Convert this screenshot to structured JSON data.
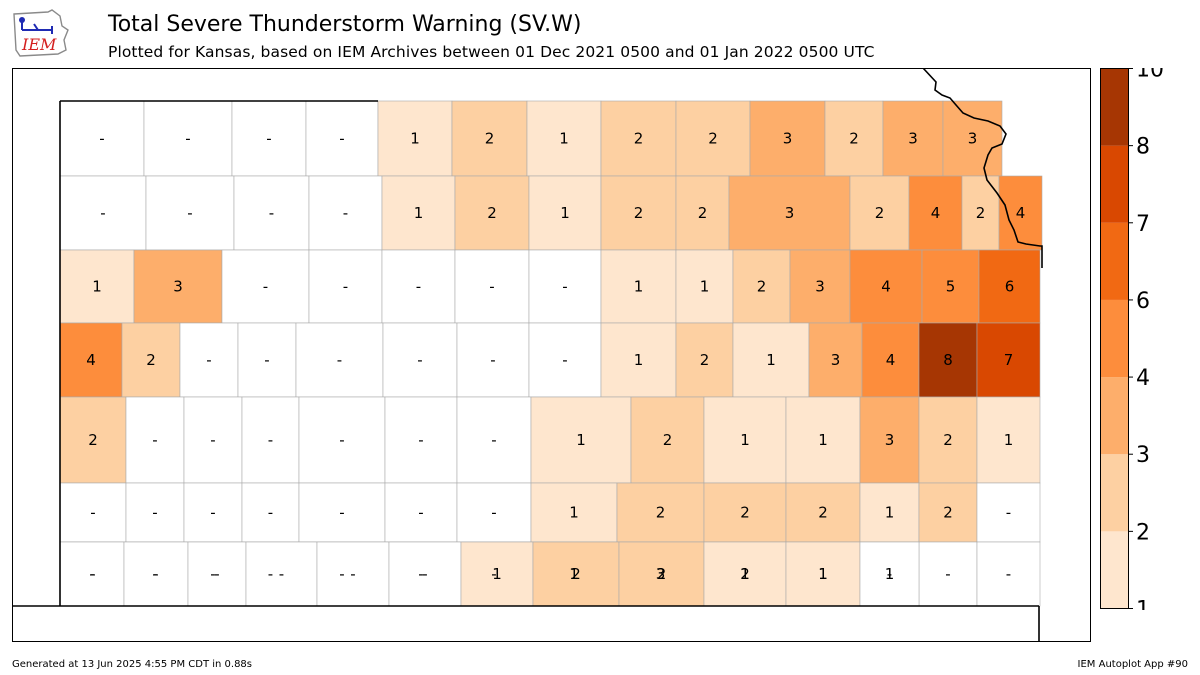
{
  "header": {
    "logo_text": "IEM",
    "title": "Total Severe Thunderstorm Warning (SV.W)",
    "subtitle": "Plotted for Kansas, based on IEM Archives  between 01 Dec 2021 0500 and 01 Jan 2022 0500 UTC"
  },
  "footer": {
    "generated": "Generated at 13 Jun 2025 4:55 PM CDT in 0.88s",
    "app": "IEM Autoplot App #90"
  },
  "colorbar": {
    "ticks": [
      "1",
      "2",
      "3",
      "4",
      "6",
      "7",
      "8",
      "10"
    ],
    "bin_colors": [
      "#fee6ce",
      "#fdd0a2",
      "#fdae6b",
      "#fd8d3c",
      "#f16913",
      "#d94801",
      "#a63603"
    ]
  },
  "map": {
    "state": "Kansas",
    "no_data_label": "-",
    "counties": [
      {
        "v": null
      },
      {
        "v": null
      },
      {
        "v": null
      },
      {
        "v": null
      },
      {
        "v": 1
      },
      {
        "v": 2
      },
      {
        "v": 1
      },
      {
        "v": 2
      },
      {
        "v": 2
      },
      {
        "v": 3
      },
      {
        "v": 2
      },
      {
        "v": 3
      },
      {
        "v": 3
      },
      {
        "v": null
      },
      {
        "v": null
      },
      {
        "v": null
      },
      {
        "v": null
      },
      {
        "v": 1
      },
      {
        "v": 2
      },
      {
        "v": 1
      },
      {
        "v": 2
      },
      {
        "v": 2
      },
      {
        "v": 3
      },
      {
        "v": 2
      },
      {
        "v": 4
      },
      {
        "v": 2
      },
      {
        "v": 4
      },
      {
        "v": 1
      },
      {
        "v": 3
      },
      {
        "v": null
      },
      {
        "v": null
      },
      {
        "v": null
      },
      {
        "v": null
      },
      {
        "v": null
      },
      {
        "v": 1
      },
      {
        "v": 1
      },
      {
        "v": 2
      },
      {
        "v": 3
      },
      {
        "v": 4
      },
      {
        "v": 5
      },
      {
        "v": 6
      },
      {
        "v": 4
      },
      {
        "v": 2
      },
      {
        "v": null
      },
      {
        "v": null
      },
      {
        "v": null
      },
      {
        "v": null
      },
      {
        "v": null
      },
      {
        "v": null
      },
      {
        "v": 1
      },
      {
        "v": 2
      },
      {
        "v": 1
      },
      {
        "v": 3
      },
      {
        "v": 4
      },
      {
        "v": 8
      },
      {
        "v": 7
      },
      {
        "v": 2
      },
      {
        "v": null
      },
      {
        "v": null
      },
      {
        "v": null
      },
      {
        "v": null
      },
      {
        "v": null
      },
      {
        "v": null
      },
      {
        "v": 1
      },
      {
        "v": 2
      },
      {
        "v": 1
      },
      {
        "v": 1
      },
      {
        "v": 3
      },
      {
        "v": 2
      },
      {
        "v": 1
      },
      {
        "v": null
      },
      {
        "v": null
      },
      {
        "v": null
      },
      {
        "v": null
      },
      {
        "v": null
      },
      {
        "v": null
      },
      {
        "v": null
      },
      {
        "v": 1
      },
      {
        "v": 2
      },
      {
        "v": 2
      },
      {
        "v": 2
      },
      {
        "v": 1
      },
      {
        "v": 2
      },
      {
        "v": null
      },
      {
        "v": null
      },
      {
        "v": null
      },
      {
        "v": null
      },
      {
        "v": null
      },
      {
        "v": null
      },
      {
        "v": null
      },
      {
        "v": null
      },
      {
        "v": 1
      },
      {
        "v": 3
      },
      {
        "v": 2
      },
      {
        "v": 1
      },
      {
        "v": 1
      },
      {
        "v": null
      },
      {
        "v": null
      },
      {
        "v": null
      },
      {
        "v": null
      },
      {
        "v": null
      },
      {
        "v": null
      },
      {
        "v": null
      },
      {
        "v": null
      },
      {
        "v": 1
      },
      {
        "v": 2
      },
      {
        "v": 2
      },
      {
        "v": 1
      },
      {
        "v": 1
      },
      {
        "v": null
      }
    ]
  }
}
